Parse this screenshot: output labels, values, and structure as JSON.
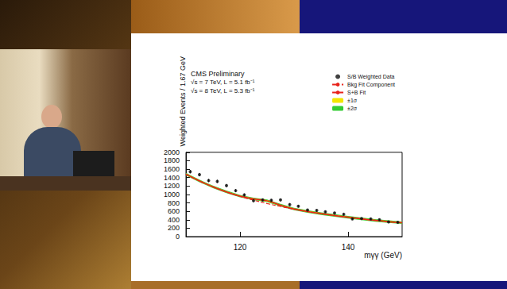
{
  "chart_data": {
    "type": "scatter",
    "annotations": [
      "CMS Preliminary",
      "√s = 7 TeV, L = 5.1 fb⁻¹",
      "√s = 8 TeV, L = 5.3 fb⁻¹"
    ],
    "x_label": "mγγ (GeV)",
    "y_label": "Weighted Events / 1.67 GeV",
    "xlim": [
      110,
      150
    ],
    "ylim": [
      0,
      2000
    ],
    "xticks": [
      120,
      140
    ],
    "yticks": [
      0,
      200,
      400,
      600,
      800,
      1000,
      1200,
      1400,
      1600,
      1800,
      2000
    ],
    "legend": "upper right",
    "series": [
      {
        "name": "±2σ",
        "type": "band",
        "color": "#33cc33",
        "x": [
          110,
          112.5,
          115,
          117.5,
          120,
          122.5,
          125,
          127.5,
          130,
          132.5,
          135,
          137.5,
          140,
          142.5,
          145,
          147.5,
          150
        ],
        "lower": [
          1450,
          1290,
          1150,
          1030,
          930,
          865,
          820,
          715,
          625,
          565,
          515,
          470,
          430,
          390,
          355,
          325,
          300
        ],
        "upper": [
          1510,
          1350,
          1210,
          1090,
          990,
          925,
          880,
          775,
          685,
          625,
          575,
          530,
          490,
          450,
          415,
          385,
          360
        ]
      },
      {
        "name": "±1σ",
        "type": "band",
        "color": "#f2e600",
        "x": [
          110,
          112.5,
          115,
          117.5,
          120,
          122.5,
          125,
          127.5,
          130,
          132.5,
          135,
          137.5,
          140,
          142.5,
          145,
          147.5,
          150
        ],
        "lower": [
          1465,
          1305,
          1165,
          1045,
          945,
          880,
          835,
          730,
          640,
          580,
          530,
          485,
          445,
          405,
          370,
          340,
          315
        ],
        "upper": [
          1495,
          1335,
          1195,
          1075,
          975,
          910,
          865,
          760,
          670,
          610,
          560,
          515,
          475,
          435,
          400,
          370,
          345
        ]
      },
      {
        "name": "S+B Fit",
        "type": "line",
        "color": "#e8231b",
        "line_style": "solid",
        "x": [
          110,
          112.5,
          115,
          117.5,
          120,
          122.5,
          125,
          127.5,
          130,
          132.5,
          135,
          137.5,
          140,
          142.5,
          145,
          147.5,
          150
        ],
        "values": [
          1480,
          1320,
          1180,
          1060,
          960,
          895,
          850,
          745,
          655,
          595,
          545,
          500,
          460,
          420,
          385,
          355,
          330
        ]
      },
      {
        "name": "Bkg Fit Component",
        "type": "line",
        "color": "#e8231b",
        "line_style": "dashed",
        "x": [
          110,
          112.5,
          115,
          117.5,
          120,
          122.5,
          125,
          127.5,
          130,
          132.5,
          135,
          137.5,
          140,
          142.5,
          145,
          147.5,
          150
        ],
        "values": [
          1480,
          1320,
          1180,
          1060,
          955,
          865,
          785,
          715,
          650,
          595,
          545,
          500,
          460,
          420,
          385,
          355,
          330
        ]
      },
      {
        "name": "S/B Weighted Data",
        "type": "scatter",
        "color": "#111111",
        "marker": "circle",
        "x": [
          110.8,
          112.5,
          114.2,
          115.8,
          117.5,
          119.2,
          120.8,
          122.5,
          124.2,
          125.8,
          127.5,
          129.2,
          130.8,
          132.5,
          134.2,
          135.8,
          137.5,
          139.2,
          140.8,
          142.5,
          144.2,
          145.8,
          147.5,
          149.2
        ],
        "values": [
          1540,
          1470,
          1330,
          1310,
          1210,
          1090,
          990,
          850,
          870,
          860,
          870,
          760,
          720,
          630,
          620,
          590,
          560,
          530,
          420,
          430,
          420,
          400,
          350,
          340
        ],
        "errors": [
          40,
          40,
          38,
          38,
          36,
          35,
          33,
          31,
          31,
          31,
          31,
          29,
          28,
          27,
          27,
          26,
          25,
          25,
          23,
          23,
          23,
          22,
          21,
          21
        ]
      }
    ]
  }
}
